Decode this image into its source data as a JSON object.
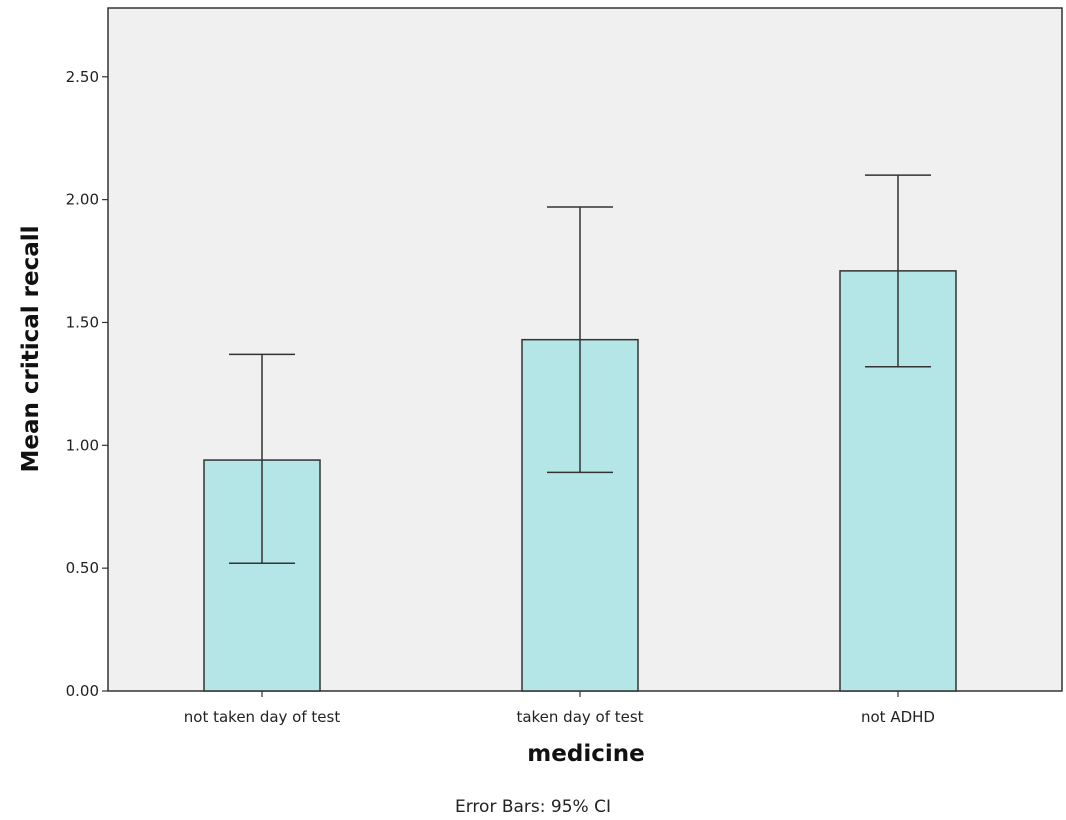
{
  "chart_data": {
    "type": "bar",
    "title": "",
    "xlabel": "medicine",
    "ylabel": "Mean critical recall",
    "footnote": "Error Bars: 95% CI",
    "categories": [
      "not taken day of test",
      "taken day of test",
      "not ADHD"
    ],
    "values": [
      0.94,
      1.43,
      1.71
    ],
    "error_low": [
      0.52,
      0.89,
      1.32
    ],
    "error_high": [
      1.37,
      1.97,
      2.1
    ],
    "ylim": [
      0,
      2.78
    ],
    "yticks": [
      0.0,
      0.5,
      1.0,
      1.5,
      2.0,
      2.5
    ],
    "ytick_labels": [
      "0.00",
      "0.50",
      "1.00",
      "1.50",
      "2.00",
      "2.50"
    ],
    "grid": false,
    "colors": {
      "bar_fill": "#b4e6e8",
      "bar_stroke": "#333333",
      "plot_background": "#f0f0f0",
      "error_bar": "#333333"
    }
  }
}
